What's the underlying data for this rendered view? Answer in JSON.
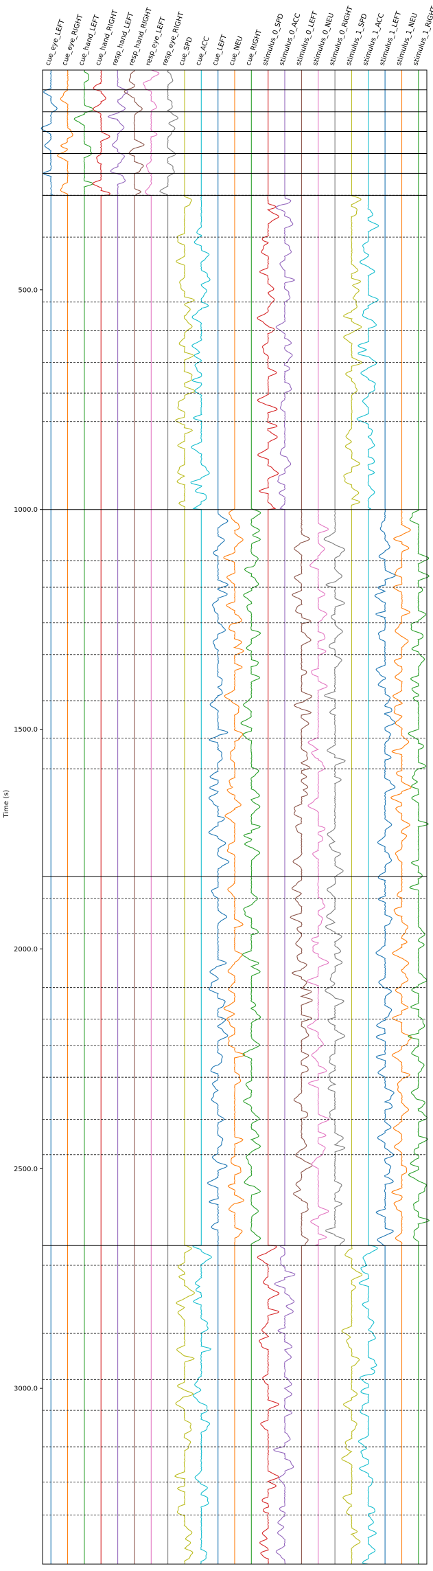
{
  "chart_data": {
    "type": "line",
    "title": "",
    "xlabel": "",
    "ylabel": "Time (s)",
    "ylim": [
      0,
      3400
    ],
    "y_inverted": true,
    "grid": false,
    "yticks": [
      500.0,
      1000.0,
      1500.0,
      2000.0,
      2500.0,
      3000.0
    ],
    "ytick_labels": [
      "500.0",
      "1000.0",
      "1500.0",
      "2000.0",
      "2500.0",
      "3000.0"
    ],
    "regressors": [
      {
        "name": "cue_eye_LEFT",
        "color": "#1f77b4"
      },
      {
        "name": "cue_eye_RIGHT",
        "color": "#ff7f0e"
      },
      {
        "name": "cue_hand_LEFT",
        "color": "#2ca02c"
      },
      {
        "name": "cue_hand_RIGHT",
        "color": "#d62728"
      },
      {
        "name": "resp_hand_LEFT",
        "color": "#9467bd"
      },
      {
        "name": "resp_hand_RIGHT",
        "color": "#8c564b"
      },
      {
        "name": "resp_eye_LEFT",
        "color": "#e377c2"
      },
      {
        "name": "resp_eye_RIGHT",
        "color": "#7f7f7f"
      },
      {
        "name": "cue_SPD",
        "color": "#bcbd22"
      },
      {
        "name": "cue_ACC",
        "color": "#17becf"
      },
      {
        "name": "cue_LEFT",
        "color": "#1f77b4"
      },
      {
        "name": "cue_NEU",
        "color": "#ff7f0e"
      },
      {
        "name": "cue_RIGHT",
        "color": "#2ca02c"
      },
      {
        "name": "stimulus_0_SPD",
        "color": "#d62728"
      },
      {
        "name": "stimulus_0_ACC",
        "color": "#9467bd"
      },
      {
        "name": "stimulus_0_LEFT",
        "color": "#8c564b"
      },
      {
        "name": "stimulus_0_NEU",
        "color": "#e377c2"
      },
      {
        "name": "stimulus_0_RIGHT",
        "color": "#7f7f7f"
      },
      {
        "name": "stimulus_1_SPD",
        "color": "#bcbd22"
      },
      {
        "name": "stimulus_1_ACC",
        "color": "#17becf"
      },
      {
        "name": "stimulus_1_LEFT",
        "color": "#1f77b4"
      },
      {
        "name": "stimulus_1_NEU",
        "color": "#ff7f0e"
      },
      {
        "name": "stimulus_1_RIGHT",
        "color": "#2ca02c"
      }
    ],
    "run_boundaries": [
      0,
      45,
      95,
      140,
      190,
      235,
      285,
      1000,
      1835,
      2675,
      3400
    ],
    "block_boundaries": [
      285,
      380,
      528,
      593,
      665,
      735,
      800,
      1117,
      1177,
      1258,
      1330,
      1435,
      1520,
      1590,
      1885,
      1965,
      2088,
      2160,
      2220,
      2292,
      2388,
      2468,
      2720,
      2875,
      2980,
      3050,
      3133,
      3213,
      3288
    ],
    "active_segments": [
      {
        "from": 0,
        "to": 285,
        "regressors": [
          0,
          1,
          2,
          3,
          4,
          5,
          6,
          7
        ]
      },
      {
        "from": 285,
        "to": 1000,
        "regressors": [
          8,
          9,
          13,
          14,
          18,
          19
        ]
      },
      {
        "from": 1000,
        "to": 2675,
        "regressors": [
          10,
          11,
          12,
          15,
          16,
          17,
          20,
          21,
          22
        ]
      },
      {
        "from": 2675,
        "to": 3400,
        "regressors": [
          8,
          9,
          13,
          14,
          18,
          19
        ]
      }
    ]
  }
}
